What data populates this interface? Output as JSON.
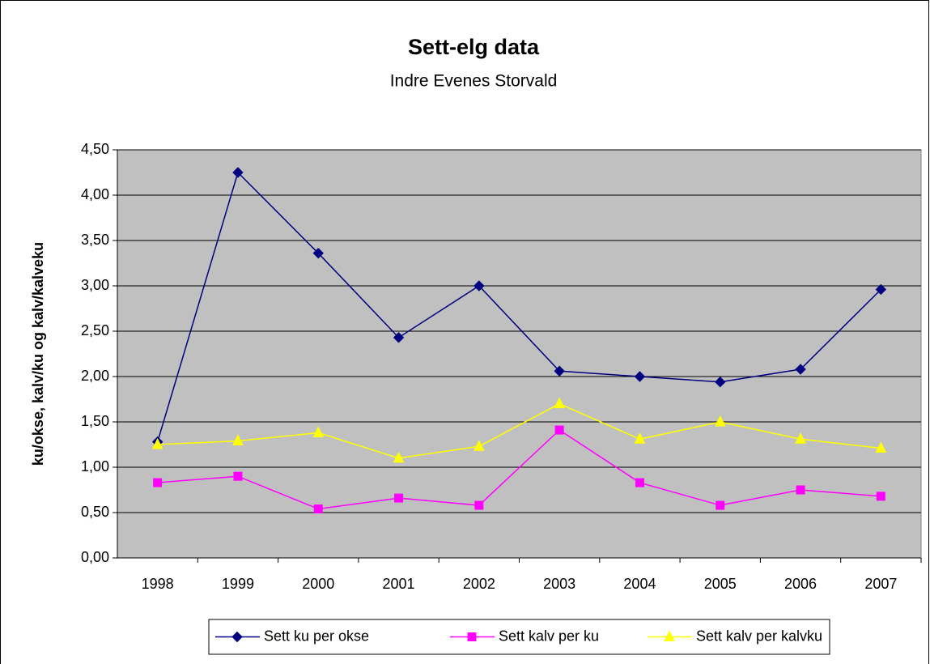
{
  "chart_data": {
    "type": "line",
    "title": "Sett-elg data",
    "subtitle": "Indre Evenes Storvald",
    "y_label": "ku/okse, kalv/ku og kalv/kalveku",
    "categories": [
      "1998",
      "1999",
      "2000",
      "2001",
      "2002",
      "2003",
      "2004",
      "2005",
      "2006",
      "2007"
    ],
    "series": [
      {
        "name": "Sett ku per okse",
        "color": "#000080",
        "marker": "diamond",
        "values": [
          1.28,
          4.25,
          3.36,
          2.43,
          3.0,
          2.06,
          2.0,
          1.94,
          2.08,
          2.96
        ]
      },
      {
        "name": "Sett kalv per ku",
        "color": "#ff00ff",
        "marker": "square",
        "values": [
          0.83,
          0.9,
          0.54,
          0.66,
          0.58,
          1.41,
          0.83,
          0.58,
          0.75,
          0.68
        ]
      },
      {
        "name": "Sett kalv per kalvku",
        "color": "#ffff00",
        "marker": "triangle",
        "values": [
          1.25,
          1.29,
          1.38,
          1.1,
          1.23,
          1.7,
          1.31,
          1.5,
          1.31,
          1.21
        ]
      }
    ],
    "ylim": [
      0,
      4.5
    ],
    "yticks": [
      {
        "value": 0,
        "label": "0,00"
      },
      {
        "value": 0.5,
        "label": "0,50"
      },
      {
        "value": 1,
        "label": "1,00"
      },
      {
        "value": 1.5,
        "label": "1,50"
      },
      {
        "value": 2,
        "label": "2,00"
      },
      {
        "value": 2.5,
        "label": "2,50"
      },
      {
        "value": 3,
        "label": "3,00"
      },
      {
        "value": 3.5,
        "label": "3,50"
      },
      {
        "value": 4,
        "label": "4,00"
      },
      {
        "value": 4.5,
        "label": "4,50"
      }
    ],
    "grid": true,
    "plot_background": "#c0c0c0",
    "legend": "bottom"
  }
}
